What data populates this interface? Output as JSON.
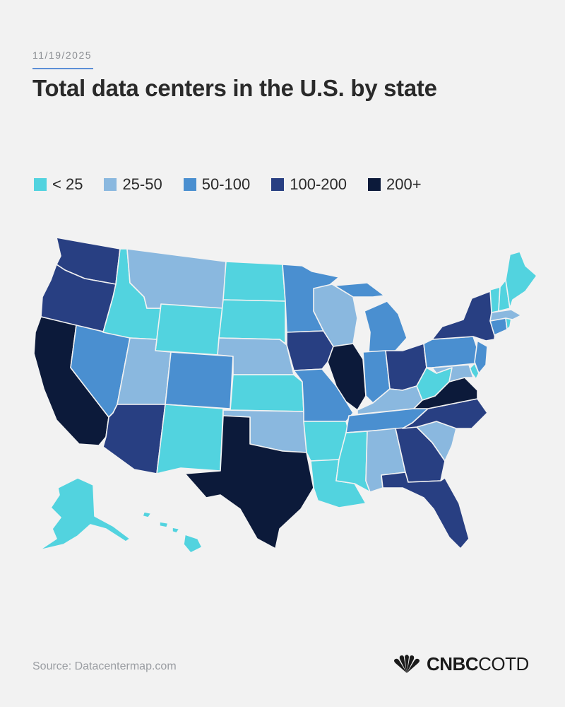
{
  "date": "11/19/2025",
  "title": "Total data centers in the U.S. by state",
  "legend": [
    {
      "label": "< 25",
      "color": "#52d3df"
    },
    {
      "label": "25-50",
      "color": "#8ab8df"
    },
    {
      "label": "50-100",
      "color": "#4a8fd0"
    },
    {
      "label": "100-200",
      "color": "#283f82"
    },
    {
      "label": "200+",
      "color": "#0c1a3a"
    }
  ],
  "states": {
    "WA": "100-200",
    "OR": "100-200",
    "CA": "200+",
    "NV": "50-100",
    "ID": "< 25",
    "MT": "25-50",
    "WY": "< 25",
    "UT": "25-50",
    "AZ": "100-200",
    "CO": "50-100",
    "NM": "< 25",
    "ND": "< 25",
    "SD": "< 25",
    "NE": "25-50",
    "KS": "< 25",
    "OK": "25-50",
    "TX": "200+",
    "MN": "50-100",
    "IA": "100-200",
    "MO": "50-100",
    "AR": "< 25",
    "LA": "< 25",
    "WI": "25-50",
    "IL": "200+",
    "MI": "50-100",
    "IN": "50-100",
    "OH": "100-200",
    "KY": "25-50",
    "TN": "50-100",
    "MS": "< 25",
    "AL": "25-50",
    "GA": "100-200",
    "FL": "100-200",
    "SC": "25-50",
    "NC": "100-200",
    "VA": "200+",
    "WV": "< 25",
    "PA": "50-100",
    "NY": "100-200",
    "NJ": "50-100",
    "DE": "< 25",
    "MD": "25-50",
    "CT": "50-100",
    "RI": "< 25",
    "MA": "25-50",
    "VT": "< 25",
    "NH": "< 25",
    "ME": "< 25",
    "AK": "< 25",
    "HI": "< 25"
  },
  "source": "Source: Datacentermap.com",
  "logo": {
    "brand": "CNBC",
    "suffix": "COTD"
  }
}
